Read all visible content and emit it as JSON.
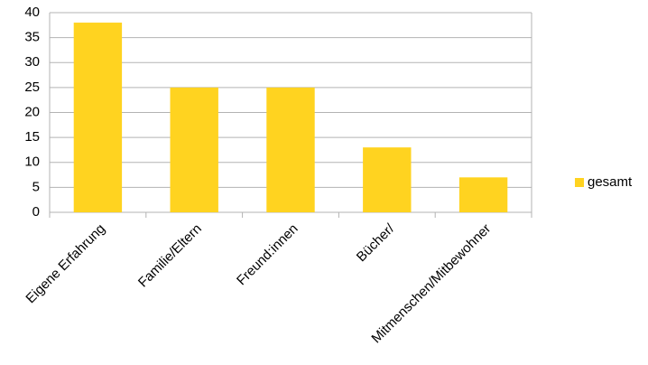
{
  "chart_data": {
    "type": "bar",
    "categories": [
      "Eigene Erfahrung",
      "Familie/Eltern",
      "Freund:innen",
      "Bücher/",
      "Mitmenschen/Mitbewohner"
    ],
    "series": [
      {
        "name": "gesamt",
        "color": "#ffd320",
        "values": [
          38,
          25,
          25,
          13,
          7
        ]
      }
    ],
    "ylim": [
      0,
      40
    ],
    "yticks": [
      0,
      5,
      10,
      15,
      20,
      25,
      30,
      35,
      40
    ],
    "grid": true,
    "legend": "right"
  }
}
